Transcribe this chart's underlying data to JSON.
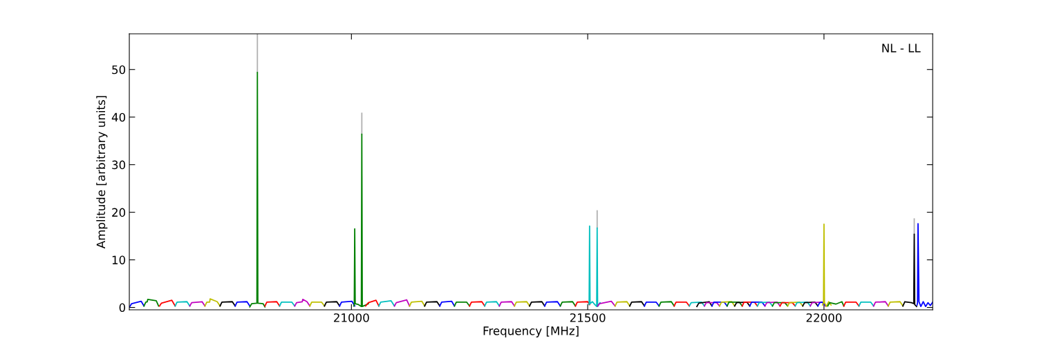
{
  "chart_data": {
    "type": "line",
    "xlabel": "Frequency [MHz]",
    "ylabel": "Amplitude [arbitrary units]",
    "annotations": [
      "NL - LL"
    ],
    "xlim": [
      20530,
      22230
    ],
    "ylim": [
      -0.5,
      57.5
    ],
    "xticks": [
      21000,
      21500,
      22000
    ],
    "yticks": [
      0,
      10,
      20,
      30,
      40,
      50
    ],
    "grid": false,
    "marker": "none",
    "line_style": "solid",
    "series": [
      {
        "color": "#b0b0b0",
        "x": [
          20801,
          20801
        ],
        "values": [
          49.4,
          57.5
        ]
      },
      {
        "color": "#b0b0b0",
        "x": [
          21022,
          21022
        ],
        "values": [
          36.4,
          40.8
        ]
      },
      {
        "color": "#b0b0b0",
        "x": [
          21520,
          21520
        ],
        "values": [
          16.7,
          20.3
        ]
      },
      {
        "color": "#b0b0b0",
        "x": [
          22191,
          22191
        ],
        "values": [
          15.4,
          18.6
        ]
      },
      {
        "color": "#0000ff",
        "x": [
          20531,
          20535,
          20555,
          20561
        ],
        "values": [
          0.2,
          0.8,
          1.3,
          0.3
        ]
      },
      {
        "color": "#008000",
        "x": [
          20561,
          20565,
          20568,
          20569,
          20587,
          20592
        ],
        "values": [
          0.3,
          1.1,
          1.2,
          1.7,
          1.4,
          0.3
        ]
      },
      {
        "color": "#ff0000",
        "x": [
          20594,
          20598,
          20620,
          20627
        ],
        "values": [
          0.3,
          0.9,
          1.5,
          0.3
        ]
      },
      {
        "color": "#00bfbf",
        "x": [
          20627,
          20631,
          20652,
          20658
        ],
        "values": [
          0.3,
          1.1,
          1.2,
          0.3
        ]
      },
      {
        "color": "#bf00bf",
        "x": [
          20658,
          20662,
          20684,
          20690
        ],
        "values": [
          0.3,
          1.0,
          1.2,
          0.3
        ]
      },
      {
        "color": "#bfbf00",
        "x": [
          20690,
          20694,
          20700,
          20701,
          20716,
          20722
        ],
        "values": [
          0.3,
          1.1,
          1.1,
          1.8,
          1.2,
          0.3
        ]
      },
      {
        "color": "#000000",
        "x": [
          20722,
          20726,
          20748,
          20754
        ],
        "values": [
          0.3,
          1.1,
          1.2,
          0.3
        ]
      },
      {
        "color": "#0000ff",
        "x": [
          20754,
          20758,
          20779,
          20785
        ],
        "values": [
          0.3,
          1.1,
          1.2,
          0.3
        ]
      },
      {
        "color": "#008000",
        "x": [
          20785,
          20789,
          20800,
          20801,
          20802,
          20813,
          20817
        ],
        "values": [
          0.1,
          0.8,
          0.9,
          49.4,
          0.9,
          0.8,
          0.1
        ]
      },
      {
        "color": "#ff0000",
        "x": [
          20817,
          20821,
          20842,
          20848
        ],
        "values": [
          0.3,
          1.1,
          1.2,
          0.3
        ]
      },
      {
        "color": "#00bfbf",
        "x": [
          20848,
          20852,
          20874,
          20880
        ],
        "values": [
          0.3,
          1.1,
          1.1,
          0.3
        ]
      },
      {
        "color": "#bf00bf",
        "x": [
          20880,
          20884,
          20896,
          20897,
          20906,
          20912
        ],
        "values": [
          0.3,
          1.0,
          1.2,
          1.7,
          1.2,
          0.3
        ]
      },
      {
        "color": "#bfbf00",
        "x": [
          20912,
          20916,
          20937,
          20943
        ],
        "values": [
          0.3,
          1.1,
          1.1,
          0.3
        ]
      },
      {
        "color": "#000000",
        "x": [
          20943,
          20947,
          20969,
          20975
        ],
        "values": [
          0.3,
          1.1,
          1.2,
          0.3
        ]
      },
      {
        "color": "#0000ff",
        "x": [
          20975,
          20979,
          21001,
          21007
        ],
        "values": [
          0.3,
          1.1,
          1.3,
          0.3
        ]
      },
      {
        "color": "#008000",
        "x": [
          21005,
          21006,
          21007,
          21008,
          21015,
          21021,
          21022,
          21023,
          21030,
          21036
        ],
        "values": [
          0.3,
          0.5,
          16.5,
          0.8,
          0.6,
          0.2,
          36.4,
          0.2,
          0.5,
          0.8
        ]
      },
      {
        "color": "#ff0000",
        "x": [
          21030,
          21036,
          21052,
          21058
        ],
        "values": [
          0.3,
          1.0,
          1.5,
          0.3
        ]
      },
      {
        "color": "#00bfbf",
        "x": [
          21058,
          21062,
          21084,
          21091
        ],
        "values": [
          0.3,
          1.1,
          1.4,
          0.3
        ]
      },
      {
        "color": "#bf00bf",
        "x": [
          21091,
          21095,
          21117,
          21123
        ],
        "values": [
          0.3,
          1.0,
          1.6,
          0.3
        ]
      },
      {
        "color": "#bfbf00",
        "x": [
          21123,
          21127,
          21149,
          21155
        ],
        "values": [
          0.3,
          1.1,
          1.3,
          0.3
        ]
      },
      {
        "color": "#000000",
        "x": [
          21155,
          21159,
          21181,
          21187
        ],
        "values": [
          0.3,
          1.1,
          1.2,
          0.3
        ]
      },
      {
        "color": "#0000ff",
        "x": [
          21187,
          21191,
          21212,
          21218
        ],
        "values": [
          0.3,
          1.1,
          1.3,
          0.3
        ]
      },
      {
        "color": "#008000",
        "x": [
          21218,
          21222,
          21244,
          21250
        ],
        "values": [
          0.3,
          1.1,
          1.1,
          0.3
        ]
      },
      {
        "color": "#ff0000",
        "x": [
          21250,
          21254,
          21276,
          21282
        ],
        "values": [
          0.3,
          1.1,
          1.2,
          0.3
        ]
      },
      {
        "color": "#00bfbf",
        "x": [
          21282,
          21286,
          21307,
          21313
        ],
        "values": [
          0.3,
          1.1,
          1.2,
          0.3
        ]
      },
      {
        "color": "#bf00bf",
        "x": [
          21313,
          21317,
          21339,
          21345
        ],
        "values": [
          0.3,
          1.1,
          1.2,
          0.3
        ]
      },
      {
        "color": "#bfbf00",
        "x": [
          21345,
          21349,
          21371,
          21377
        ],
        "values": [
          0.3,
          1.1,
          1.2,
          0.3
        ]
      },
      {
        "color": "#000000",
        "x": [
          21377,
          21381,
          21403,
          21409
        ],
        "values": [
          0.3,
          1.1,
          1.2,
          0.3
        ]
      },
      {
        "color": "#0000ff",
        "x": [
          21409,
          21413,
          21436,
          21442
        ],
        "values": [
          0.3,
          1.1,
          1.2,
          0.3
        ]
      },
      {
        "color": "#008000",
        "x": [
          21442,
          21446,
          21468,
          21474
        ],
        "values": [
          0.3,
          1.1,
          1.2,
          0.3
        ]
      },
      {
        "color": "#ff0000",
        "x": [
          21474,
          21478,
          21500,
          21504
        ],
        "values": [
          0.3,
          1.1,
          1.2,
          0.6
        ]
      },
      {
        "color": "#00bfbf",
        "x": [
          21503,
          21504,
          21505,
          21510,
          21515,
          21519,
          21520,
          21521,
          21526
        ],
        "values": [
          0.6,
          17.1,
          0.8,
          1.2,
          0.6,
          0.2,
          16.7,
          0.2,
          1.0
        ]
      },
      {
        "color": "#bf00bf",
        "x": [
          21521,
          21525,
          21550,
          21558
        ],
        "values": [
          0.3,
          0.8,
          1.3,
          0.3
        ]
      },
      {
        "color": "#bfbf00",
        "x": [
          21558,
          21562,
          21583,
          21589
        ],
        "values": [
          0.3,
          1.1,
          1.2,
          0.3
        ]
      },
      {
        "color": "#000000",
        "x": [
          21589,
          21593,
          21614,
          21620
        ],
        "values": [
          0.3,
          1.1,
          1.2,
          0.3
        ]
      },
      {
        "color": "#0000ff",
        "x": [
          21620,
          21624,
          21645,
          21651
        ],
        "values": [
          0.3,
          1.1,
          1.1,
          0.3
        ]
      },
      {
        "color": "#008000",
        "x": [
          21651,
          21655,
          21677,
          21683
        ],
        "values": [
          0.3,
          1.1,
          1.2,
          0.3
        ]
      },
      {
        "color": "#ff0000",
        "x": [
          21683,
          21687,
          21709,
          21715
        ],
        "values": [
          0.3,
          1.1,
          1.1,
          0.3
        ]
      },
      {
        "color": "#00bfbf",
        "x": [
          21715,
          21719,
          21741,
          21747
        ],
        "values": [
          0.3,
          1.0,
          1.1,
          0.3
        ]
      },
      {
        "color": "#000000",
        "x": [
          21731,
          21735,
          21757,
          21763
        ],
        "values": [
          0.2,
          0.9,
          1.2,
          0.3
        ]
      },
      {
        "color": "#bf00bf",
        "x": [
          21747,
          21751,
          21773,
          21779
        ],
        "values": [
          0.3,
          1.0,
          1.0,
          0.3
        ]
      },
      {
        "color": "#0000ff",
        "x": [
          21763,
          21767,
          21789,
          21795
        ],
        "values": [
          0.3,
          1.1,
          1.1,
          0.3
        ]
      },
      {
        "color": "#bfbf00",
        "x": [
          21779,
          21783,
          21805,
          21811
        ],
        "values": [
          0.3,
          1.1,
          1.2,
          0.3
        ]
      },
      {
        "color": "#008000",
        "x": [
          21795,
          21799,
          21821,
          21827
        ],
        "values": [
          0.3,
          1.1,
          1.1,
          0.3
        ]
      },
      {
        "color": "#000000",
        "x": [
          21811,
          21815,
          21837,
          21843
        ],
        "values": [
          0.3,
          1.0,
          1.1,
          0.3
        ]
      },
      {
        "color": "#ff0000",
        "x": [
          21827,
          21831,
          21853,
          21859
        ],
        "values": [
          0.3,
          1.1,
          1.1,
          0.3
        ]
      },
      {
        "color": "#0000ff",
        "x": [
          21843,
          21847,
          21869,
          21875
        ],
        "values": [
          0.3,
          1.1,
          1.1,
          0.3
        ]
      },
      {
        "color": "#00bfbf",
        "x": [
          21859,
          21863,
          21885,
          21891
        ],
        "values": [
          0.3,
          1.0,
          1.1,
          0.3
        ]
      },
      {
        "color": "#bf00bf",
        "x": [
          21875,
          21879,
          21901,
          21907
        ],
        "values": [
          0.3,
          1.0,
          1.1,
          0.3
        ]
      },
      {
        "color": "#008000",
        "x": [
          21891,
          21895,
          21917,
          21923
        ],
        "values": [
          0.3,
          1.0,
          1.0,
          0.3
        ]
      },
      {
        "color": "#ff0000",
        "x": [
          21907,
          21911,
          21933,
          21939
        ],
        "values": [
          0.3,
          1.0,
          1.0,
          0.3
        ]
      },
      {
        "color": "#bfbf00",
        "x": [
          21923,
          21927,
          21949,
          21955
        ],
        "values": [
          0.3,
          1.0,
          1.1,
          0.3
        ]
      },
      {
        "color": "#00bfbf",
        "x": [
          21939,
          21943,
          21965,
          21971
        ],
        "values": [
          0.3,
          1.0,
          1.1,
          0.3
        ]
      },
      {
        "color": "#000000",
        "x": [
          21955,
          21959,
          21981,
          21987
        ],
        "values": [
          0.3,
          1.0,
          1.1,
          0.3
        ]
      },
      {
        "color": "#bf00bf",
        "x": [
          21971,
          21975,
          21997,
          22003
        ],
        "values": [
          0.3,
          1.0,
          1.1,
          0.3
        ]
      },
      {
        "color": "#0000ff",
        "x": [
          21987,
          21991,
          21996,
          22002
        ],
        "values": [
          0.3,
          1.0,
          1.1,
          0.5
        ]
      },
      {
        "color": "#bfbf00",
        "x": [
          21997,
          21999,
          22000,
          22001,
          22005,
          22010,
          22015
        ],
        "values": [
          0.5,
          1.0,
          17.5,
          1.0,
          0.2,
          1.2,
          0.5
        ]
      },
      {
        "color": "#008000",
        "x": [
          22008,
          22012,
          22025,
          22038,
          22042
        ],
        "values": [
          0.3,
          1.0,
          0.7,
          1.2,
          0.3
        ]
      },
      {
        "color": "#ff0000",
        "x": [
          22042,
          22046,
          22068,
          22074
        ],
        "values": [
          0.3,
          1.1,
          1.1,
          0.3
        ]
      },
      {
        "color": "#00bfbf",
        "x": [
          22074,
          22078,
          22099,
          22105
        ],
        "values": [
          0.3,
          1.1,
          1.1,
          0.3
        ]
      },
      {
        "color": "#bf00bf",
        "x": [
          22105,
          22109,
          22130,
          22136
        ],
        "values": [
          0.3,
          1.1,
          1.2,
          0.3
        ]
      },
      {
        "color": "#bfbf00",
        "x": [
          22136,
          22140,
          22161,
          22167
        ],
        "values": [
          0.3,
          1.1,
          1.2,
          0.3
        ]
      },
      {
        "color": "#000000",
        "x": [
          22167,
          22171,
          22185,
          22190,
          22191,
          22192,
          22196
        ],
        "values": [
          0.3,
          1.2,
          1.0,
          0.8,
          15.4,
          0.6,
          0.2
        ]
      },
      {
        "color": "#0000ff",
        "x": [
          22197,
          22198,
          22199,
          22201,
          22205,
          22210,
          22215,
          22220,
          22225,
          22230
        ],
        "values": [
          0.5,
          1.0,
          17.6,
          1.2,
          0.2,
          1.2,
          0.2,
          1.0,
          0.4,
          1.1
        ]
      }
    ]
  }
}
